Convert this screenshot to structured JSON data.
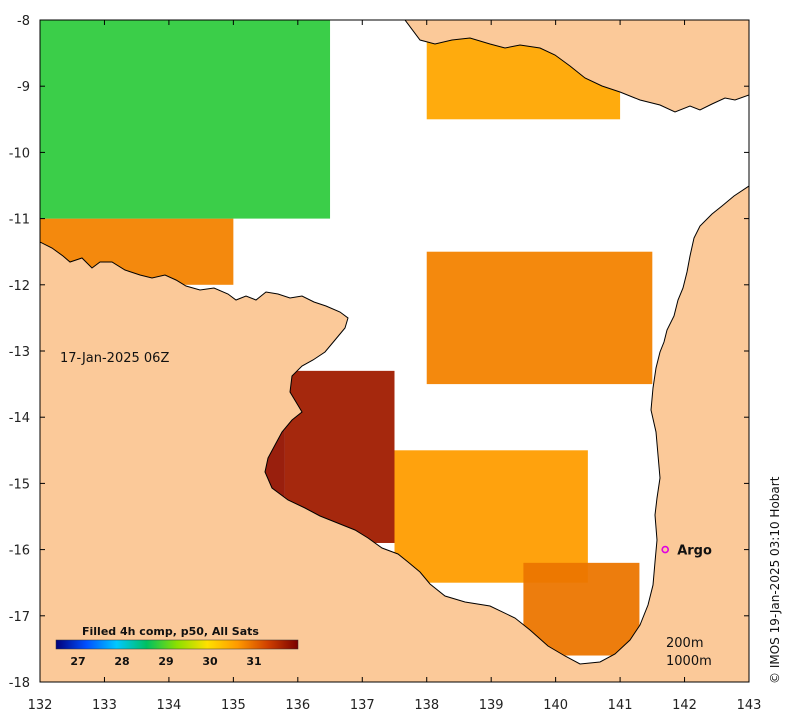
{
  "map": {
    "date_label": "17-Jan-2025 06Z",
    "credit": "© IMOS 19-Jan-2025 03:10 Hobart",
    "x_ticks": [
      "132",
      "133",
      "134",
      "135",
      "136",
      "137",
      "138",
      "139",
      "140",
      "141",
      "142",
      "143"
    ],
    "y_ticks": [
      "-8",
      "-9",
      "-10",
      "-11",
      "-12",
      "-13",
      "-14",
      "-15",
      "-16",
      "-17",
      "-18"
    ],
    "marker": {
      "label": "Argo",
      "lon": 141.7,
      "lat": -16.0,
      "color": "#e000e0"
    },
    "depth_contours": [
      "200m",
      "1000m"
    ],
    "colorbar": {
      "title": "Filled 4h comp, p50, All Sats",
      "ticks": [
        "27",
        "28",
        "29",
        "30",
        "31"
      ],
      "colors": [
        "#00007a",
        "#0050ff",
        "#00c8ff",
        "#00c060",
        "#8ce000",
        "#ffe000",
        "#ff9a00",
        "#d04000",
        "#7a0000"
      ]
    },
    "colors": {
      "land": "#fbc999",
      "ocean_clouds": "#ffffff",
      "coast": "#000000"
    }
  },
  "chart_data": {
    "type": "heatmap",
    "title": "",
    "xlabel": "",
    "ylabel": "",
    "xlim": [
      132,
      143
    ],
    "ylim": [
      -18,
      -8
    ],
    "variable": "Filled 4h comp, p50, All Sats",
    "color_range": [
      26.5,
      32
    ],
    "colorbar_ticks": [
      27,
      28,
      29,
      30,
      31
    ],
    "regions": [
      {
        "name": "",
        "lon": [
          134.3,
          135.8
        ],
        "lat": [
          -15.8,
          -13.7
        ],
        "value": 31.8
      },
      {
        "name": "",
        "lon": [
          135.8,
          137.5
        ],
        "lat": [
          -15.9,
          -13.3
        ],
        "value": 31.7
      },
      {
        "name": "",
        "lon": [
          137.5,
          140.5
        ],
        "lat": [
          -16.5,
          -14.5
        ],
        "value": 30.6
      },
      {
        "name": "",
        "lon": [
          139.5,
          141.3
        ],
        "lat": [
          -17.6,
          -16.2
        ],
        "value": 30.9
      },
      {
        "name": "",
        "lon": [
          132.0,
          135.0
        ],
        "lat": [
          -12.0,
          -11.0
        ],
        "value": 30.8
      },
      {
        "name": "",
        "lon": [
          132.0,
          136.5
        ],
        "lat": [
          -11.0,
          -8.0
        ],
        "value": 28.8
      },
      {
        "name": "",
        "lon": [
          138.0,
          141.0
        ],
        "lat": [
          -9.5,
          -8.2
        ],
        "value": 30.5
      },
      {
        "name": "",
        "lon": [
          138.0,
          141.5
        ],
        "lat": [
          -13.5,
          -11.5
        ],
        "value": 30.8
      }
    ]
  }
}
